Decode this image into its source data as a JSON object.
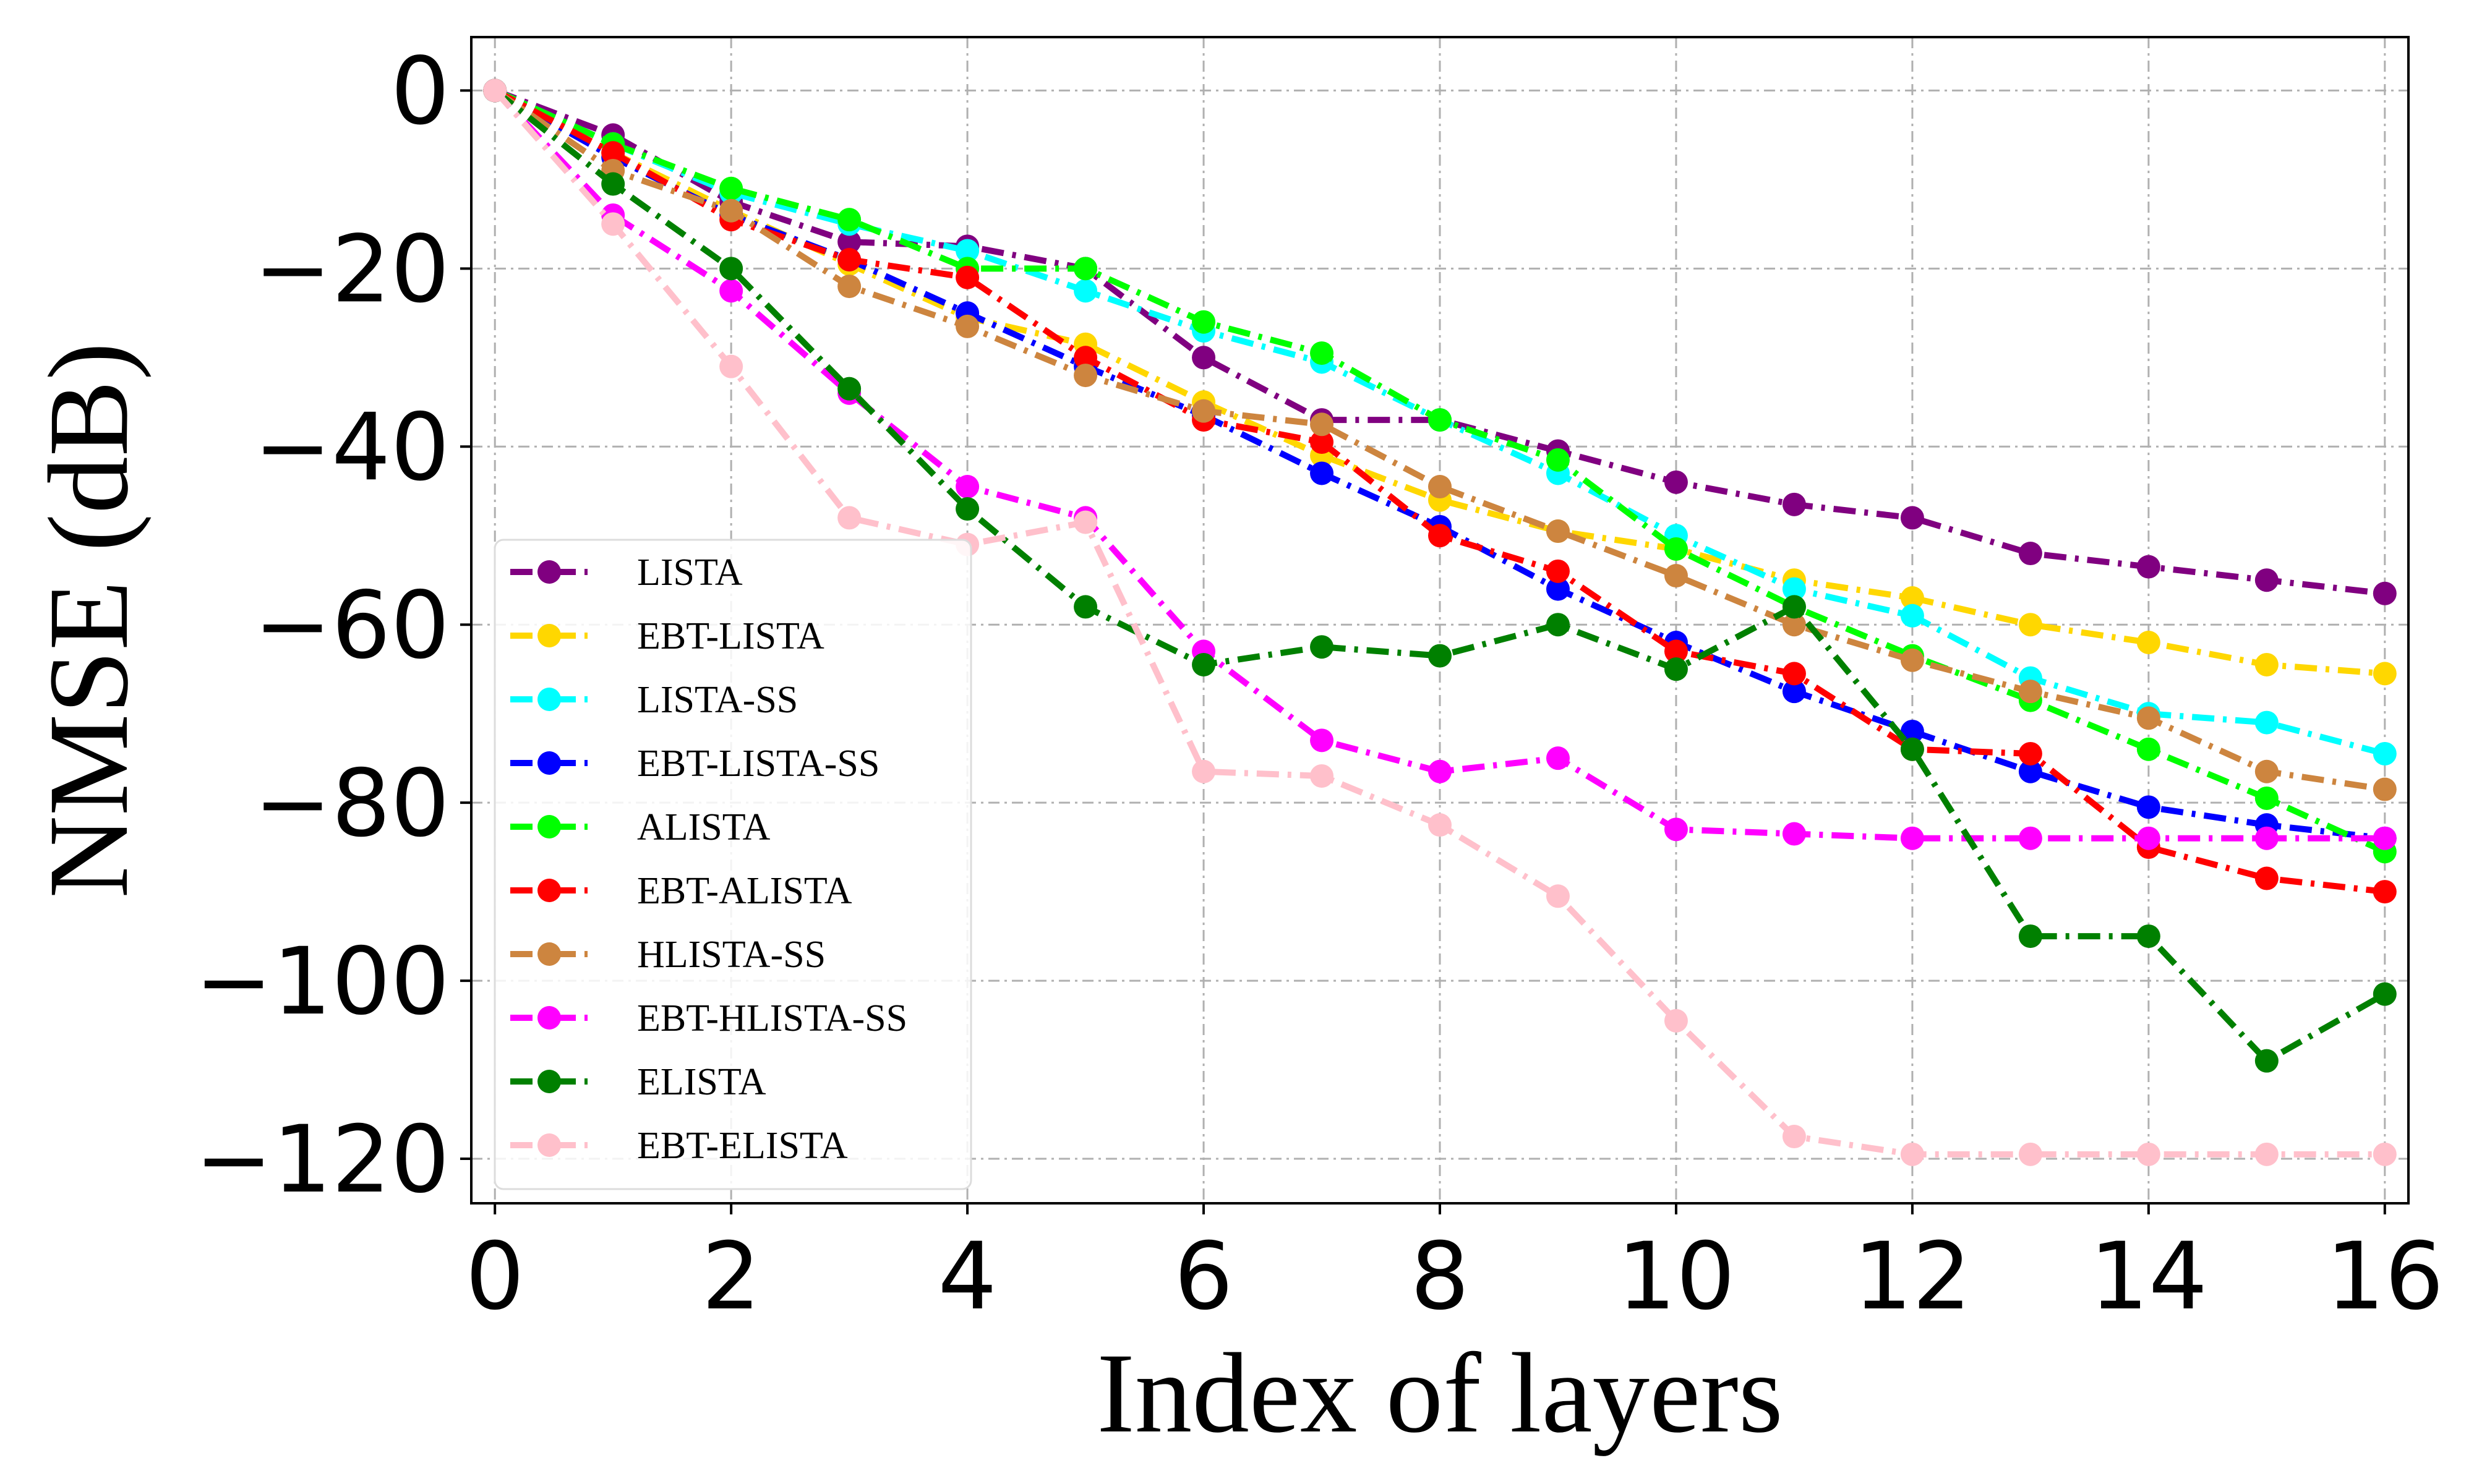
{
  "chart_data": {
    "type": "line",
    "title": "",
    "xlabel": "Index of layers",
    "ylabel": "NMSE (dB)",
    "xlim": [
      -0.2,
      16.2
    ],
    "ylim": [
      -125,
      6
    ],
    "xticks": [
      0,
      2,
      4,
      6,
      8,
      10,
      12,
      14,
      16
    ],
    "yticks": [
      0,
      -20,
      -40,
      -60,
      -80,
      -100,
      -120
    ],
    "xtick_labels": [
      "0",
      "2",
      "4",
      "6",
      "8",
      "10",
      "12",
      "14",
      "16"
    ],
    "ytick_labels": [
      "0",
      "−20",
      "−40",
      "−60",
      "−80",
      "−100",
      "−120"
    ],
    "grid": true,
    "legend_position": "lower-left",
    "x": [
      0,
      1,
      2,
      3,
      4,
      5,
      6,
      7,
      8,
      9,
      10,
      11,
      12,
      13,
      14,
      15,
      16
    ],
    "series": [
      {
        "name": "LISTA",
        "color": "#800080",
        "values": [
          0,
          -5,
          -12.5,
          -17,
          -17.5,
          -20,
          -30,
          -37,
          -37,
          -40.5,
          -44,
          -46.5,
          -48,
          -52,
          -53.5,
          -55,
          -56.5
        ]
      },
      {
        "name": "EBT-LISTA",
        "color": "#FFD700",
        "values": [
          0,
          -7,
          -13.5,
          -19.5,
          -25.5,
          -28.5,
          -35,
          -41,
          -46,
          -49.5,
          -51.5,
          -55,
          -57,
          -60,
          -62,
          -64.5,
          -65.5
        ]
      },
      {
        "name": "LISTA-SS",
        "color": "#00FFFF",
        "values": [
          0,
          -6,
          -11.5,
          -15,
          -18,
          -22.5,
          -27,
          -30.5,
          -37,
          -43,
          -50,
          -56,
          -59,
          -66,
          -70,
          -71,
          -74.5
        ]
      },
      {
        "name": "EBT-LISTA-SS",
        "color": "#0000FF",
        "values": [
          0,
          -7.5,
          -14,
          -19,
          -25,
          -31,
          -36.5,
          -43,
          -49,
          -56,
          -62,
          -67.5,
          -72,
          -76.5,
          -80.5,
          -82.5,
          -84
        ]
      },
      {
        "name": "ALISTA",
        "color": "#00FF00",
        "values": [
          0,
          -6,
          -11,
          -14.5,
          -20,
          -20,
          -26,
          -29.5,
          -37,
          -41.5,
          -51.5,
          -58,
          -63.5,
          -68.5,
          -74,
          -79.5,
          -85.5
        ]
      },
      {
        "name": "EBT-ALISTA",
        "color": "#FF0000",
        "values": [
          0,
          -7,
          -14.5,
          -19,
          -21,
          -30,
          -37,
          -39.5,
          -50,
          -54,
          -63,
          -65.5,
          -74,
          -74.5,
          -85,
          -88.5,
          -90
        ]
      },
      {
        "name": "HLISTA-SS",
        "color": "#CD853F",
        "values": [
          0,
          -9,
          -13.5,
          -22,
          -26.5,
          -32,
          -36,
          -37.5,
          -44.5,
          -49.5,
          -54.5,
          -60,
          -64,
          -67.5,
          -70.5,
          -76.5,
          -78.5
        ]
      },
      {
        "name": "EBT-HLISTA-SS",
        "color": "#FF00FF",
        "values": [
          0,
          -14,
          -22.5,
          -34,
          -44.5,
          -48,
          -63,
          -73,
          -76.5,
          -75,
          -83,
          -83.5,
          -84,
          -84,
          -84,
          -84,
          -84
        ]
      },
      {
        "name": "ELISTA",
        "color": "#008000",
        "values": [
          0,
          -10.5,
          -20,
          -33.5,
          -47,
          -58,
          -64.5,
          -62.5,
          -63.5,
          -60,
          -65,
          -58,
          -74,
          -95,
          -95,
          -109,
          -101.5
        ]
      },
      {
        "name": "EBT-ELISTA",
        "color": "#FFC0CB",
        "values": [
          0,
          -15,
          -31,
          -48,
          -51,
          -48.5,
          -76.5,
          -77,
          -82.5,
          -90.5,
          -104.5,
          -117.5,
          -119.5,
          -119.5,
          -119.5,
          -119.5,
          -119.5
        ]
      }
    ]
  }
}
